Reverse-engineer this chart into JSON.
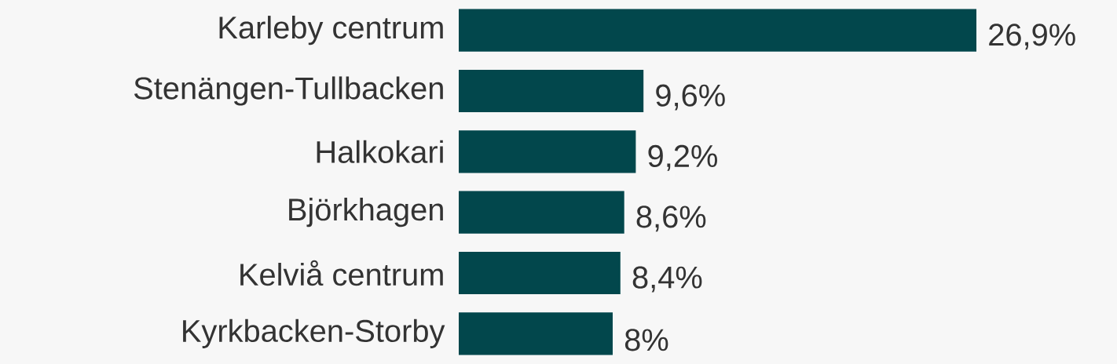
{
  "chart_data": {
    "type": "bar",
    "orientation": "horizontal",
    "categories": [
      "Karleby centrum",
      "Stenängen-Tullbacken",
      "Halkokari",
      "Björkhagen",
      "Kelviå centrum",
      "Kyrkbacken-Storby"
    ],
    "values": [
      26.9,
      9.6,
      9.2,
      8.6,
      8.4,
      8
    ],
    "value_labels": [
      "26,9%",
      "9,6%",
      "9,2%",
      "8,6%",
      "8,4%",
      "8%"
    ],
    "color": "#02474c"
  }
}
